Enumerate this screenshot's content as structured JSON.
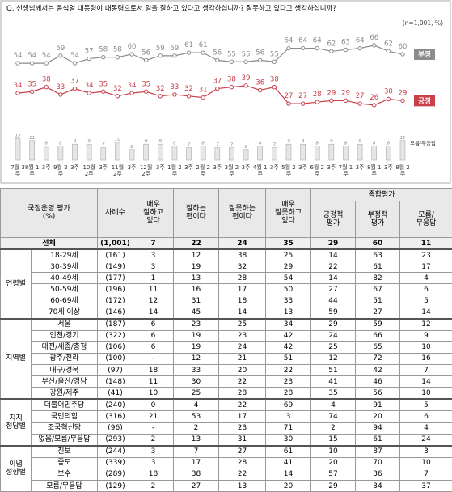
{
  "chart_data": {
    "type": "line",
    "title": "Q. 선생님께서는 윤석열 대통령이 대통령으로서 일을 잘하고 있다고 생각하십니까? 잘못하고 있다고 생각하십니까?",
    "subtitle": "(n=1,001, %)",
    "categories": [
      "7월 3주",
      "8월 1주",
      "3주",
      "9월 2주",
      "3주",
      "10월 2주",
      "3주",
      "11월 2주",
      "3주",
      "12월 2주",
      "3주",
      "1월 2주",
      "3주",
      "2월 2주",
      "3주",
      "3월 2주",
      "3주",
      "4월 1주",
      "3주",
      "5월 2주",
      "3주",
      "6월 2주",
      "3주",
      "7월 1주",
      "3주",
      "8월 1주",
      "3주",
      "8월 2주"
    ],
    "series": [
      {
        "name": "부정",
        "color": "#8c8c8c",
        "values": [
          54,
          54,
          54,
          59,
          54,
          57,
          58,
          58,
          60,
          56,
          59,
          59,
          61,
          61,
          56,
          55,
          55,
          56,
          55,
          64,
          64,
          64,
          62,
          63,
          64,
          66,
          62,
          60
        ]
      },
      {
        "name": "긍정",
        "color": "#c8404a",
        "values": [
          34,
          35,
          38,
          33,
          37,
          34,
          35,
          32,
          34,
          35,
          32,
          33,
          32,
          31,
          37,
          38,
          39,
          36,
          38,
          27,
          27,
          28,
          29,
          29,
          27,
          26,
          30,
          29
        ]
      },
      {
        "name": "모름/무응답",
        "type": "bar",
        "color": "#e6e6e6",
        "values": [
          12,
          11,
          8,
          8,
          9,
          9,
          7,
          10,
          6,
          9,
          9,
          8,
          7,
          8,
          7,
          7,
          6,
          8,
          7,
          9,
          9,
          8,
          9,
          8,
          9,
          8,
          8,
          11
        ]
      }
    ]
  },
  "table": {
    "header": {
      "label": "국정운영 평가\n(%)",
      "n": "사례수",
      "cols": [
        "매우\n잘하고\n있다",
        "잘하는\n편이다",
        "잘못하는\n편이다",
        "매우\n잘못하고\n있다"
      ],
      "summary": "종합평가",
      "summary_cols": [
        "긍정적\n평가",
        "부정적\n평가",
        "모름/\n무응답"
      ]
    },
    "total": [
      "전체",
      "(1,001)",
      7,
      22,
      24,
      35,
      29,
      60,
      11
    ],
    "groups": [
      {
        "name": "연령별",
        "rows": [
          [
            "18-29세",
            "(161)",
            3,
            12,
            38,
            25,
            14,
            63,
            23
          ],
          [
            "30-39세",
            "(149)",
            3,
            19,
            32,
            29,
            22,
            61,
            17
          ],
          [
            "40-49세",
            "(177)",
            1,
            13,
            28,
            54,
            14,
            82,
            4
          ],
          [
            "50-59세",
            "(196)",
            11,
            16,
            17,
            50,
            27,
            67,
            6
          ],
          [
            "60-69세",
            "(172)",
            12,
            31,
            18,
            33,
            44,
            51,
            5
          ],
          [
            "70세 이상",
            "(146)",
            14,
            45,
            14,
            13,
            59,
            27,
            14
          ]
        ]
      },
      {
        "name": "지역별",
        "rows": [
          [
            "서울",
            "(187)",
            6,
            23,
            25,
            34,
            29,
            59,
            12
          ],
          [
            "인천/경기",
            "(322)",
            6,
            19,
            23,
            42,
            24,
            66,
            9
          ],
          [
            "대전/세종/충청",
            "(106)",
            6,
            19,
            24,
            42,
            25,
            65,
            10
          ],
          [
            "광주/전라",
            "(100)",
            "-",
            12,
            21,
            51,
            12,
            72,
            16
          ],
          [
            "대구/경북",
            "(97)",
            18,
            33,
            20,
            22,
            51,
            42,
            7
          ],
          [
            "부산/울산/경남",
            "(148)",
            11,
            30,
            22,
            23,
            41,
            46,
            14
          ],
          [
            "강원/제주",
            "(41)",
            10,
            25,
            28,
            28,
            35,
            56,
            10
          ]
        ]
      },
      {
        "name": "지지\n정당별",
        "rows": [
          [
            "더불어민주당",
            "(240)",
            0,
            4,
            22,
            69,
            4,
            91,
            5
          ],
          [
            "국민의힘",
            "(316)",
            21,
            53,
            17,
            3,
            74,
            20,
            6
          ],
          [
            "조국혁신당",
            "(96)",
            "-",
            2,
            23,
            71,
            2,
            94,
            4
          ],
          [
            "없음/모름/무응답",
            "(293)",
            2,
            13,
            31,
            30,
            15,
            61,
            24
          ]
        ]
      },
      {
        "name": "이념\n성향별",
        "rows": [
          [
            "진보",
            "(244)",
            3,
            7,
            27,
            61,
            10,
            87,
            3
          ],
          [
            "중도",
            "(339)",
            3,
            17,
            28,
            41,
            20,
            70,
            10
          ],
          [
            "보수",
            "(289)",
            18,
            38,
            22,
            14,
            57,
            36,
            7
          ],
          [
            "모름/무응답",
            "(129)",
            2,
            27,
            13,
            20,
            29,
            34,
            37
          ]
        ]
      }
    ]
  }
}
